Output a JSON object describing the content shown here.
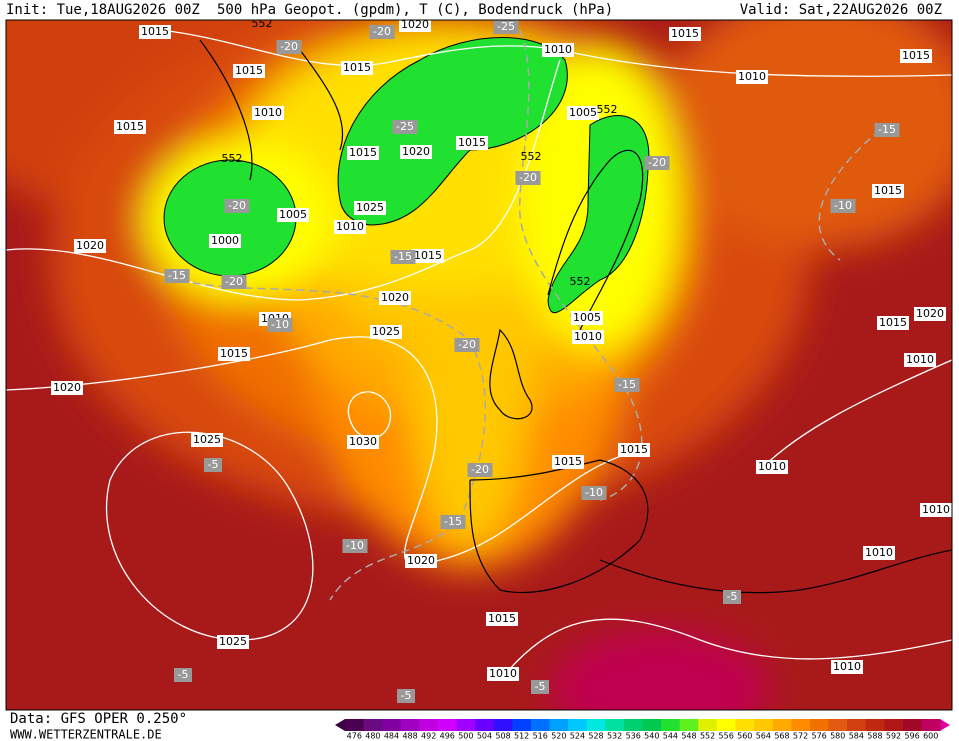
{
  "header": {
    "init": "Init: Tue,18AUG2026 00Z",
    "title": "500 hPa Geopot. (gpdm), T (C), Bodendruck (hPa)",
    "valid": "Valid: Sat,22AUG2026 00Z"
  },
  "footer": {
    "data": "Data: GFS OPER 0.250°",
    "website": "WWW.WETTERZENTRALE.DE"
  },
  "legend": {
    "values": [
      476,
      480,
      484,
      488,
      492,
      496,
      500,
      504,
      508,
      512,
      516,
      520,
      524,
      528,
      532,
      536,
      540,
      544,
      548,
      552,
      556,
      560,
      564,
      568,
      572,
      576,
      580,
      584,
      588,
      592,
      596,
      600
    ],
    "colors": [
      "#4b0050",
      "#6a0a80",
      "#8000a0",
      "#a000c0",
      "#c000e0",
      "#d000ff",
      "#a000ff",
      "#6a00ff",
      "#3010ff",
      "#0040ff",
      "#0070ff",
      "#00a0ff",
      "#00c8ff",
      "#00e8e0",
      "#00e0a0",
      "#00d070",
      "#00c850",
      "#20e030",
      "#60f020",
      "#e0f000",
      "#ffff00",
      "#ffe000",
      "#ffc800",
      "#ffaa00",
      "#ff8c00",
      "#f07000",
      "#e05a10",
      "#d04010",
      "#c02810",
      "#b01818",
      "#a00828",
      "#c00060"
    ]
  },
  "map": {
    "pressure_labels": [
      "1015",
      "1020",
      "1010",
      "1015",
      "1015",
      "1015",
      "1015",
      "1010",
      "1015",
      "1010",
      "1005",
      "1015",
      "1015",
      "1020",
      "1025",
      "1005",
      "1010",
      "1000",
      "1020",
      "1015",
      "1015",
      "1020",
      "1010",
      "1025",
      "1015",
      "1005",
      "1010",
      "1015",
      "1020",
      "1010",
      "1020",
      "1025",
      "1030",
      "1015",
      "1015",
      "1010",
      "1010",
      "1010",
      "1020",
      "1015",
      "1025",
      "1010",
      "1010"
    ],
    "height_labels": [
      "552",
      "552",
      "552",
      "552",
      "552"
    ],
    "temperature_labels": [
      "-20",
      "-20",
      "-25",
      "-25",
      "-20",
      "-20",
      "-20",
      "-15",
      "-20",
      "-15",
      "-10",
      "-20",
      "-15",
      "-10",
      "-15",
      "-5",
      "-20",
      "-10",
      "-15",
      "-10",
      "-5",
      "-5",
      "-5",
      "-5"
    ]
  }
}
